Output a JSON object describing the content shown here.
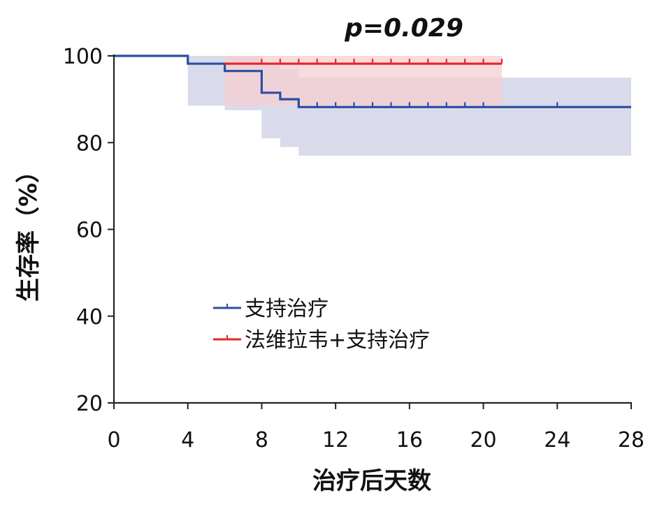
{
  "chart_data": {
    "type": "line",
    "subtype": "kaplan-meier survival curve with confidence bands",
    "annotation": "p=0.029",
    "xlabel": "治疗后天数",
    "ylabel": "生存率（%）",
    "xlim": [
      0,
      28
    ],
    "ylim": [
      20,
      100
    ],
    "xticks": [
      "0",
      "4",
      "8",
      "12",
      "16",
      "20",
      "24",
      "28"
    ],
    "yticks": [
      "20",
      "40",
      "60",
      "80",
      "100"
    ],
    "grid": false,
    "legend_position": "lower-left inside plot",
    "series": [
      {
        "name": "支持治疗",
        "color": "#2b4ea2",
        "band_color": "#d9daea",
        "step_x": [
          0,
          4,
          6,
          8,
          9,
          10,
          28
        ],
        "step_y": [
          100,
          98.2,
          96.5,
          91.5,
          90,
          88.2,
          88.2
        ],
        "ci_lower": [
          100,
          88.5,
          87.5,
          81,
          79,
          77,
          77
        ],
        "ci_upper": [
          100,
          100,
          100,
          98,
          97,
          95,
          95
        ],
        "censored_x": [
          11,
          12,
          13,
          14,
          15,
          16,
          17,
          18,
          19,
          20,
          24
        ]
      },
      {
        "name": "法维拉韦+支持治疗",
        "color": "#e8252a",
        "band_color": "#f6cfd1",
        "step_x": [
          6,
          21
        ],
        "step_y": [
          98.2,
          98.2
        ],
        "ci_lower": [
          88.5,
          95
        ],
        "ci_upper": [
          100,
          100
        ],
        "censored_x": [
          8,
          9,
          10,
          11,
          12,
          13,
          14,
          15,
          16,
          17,
          18,
          19,
          20,
          21
        ]
      }
    ]
  }
}
